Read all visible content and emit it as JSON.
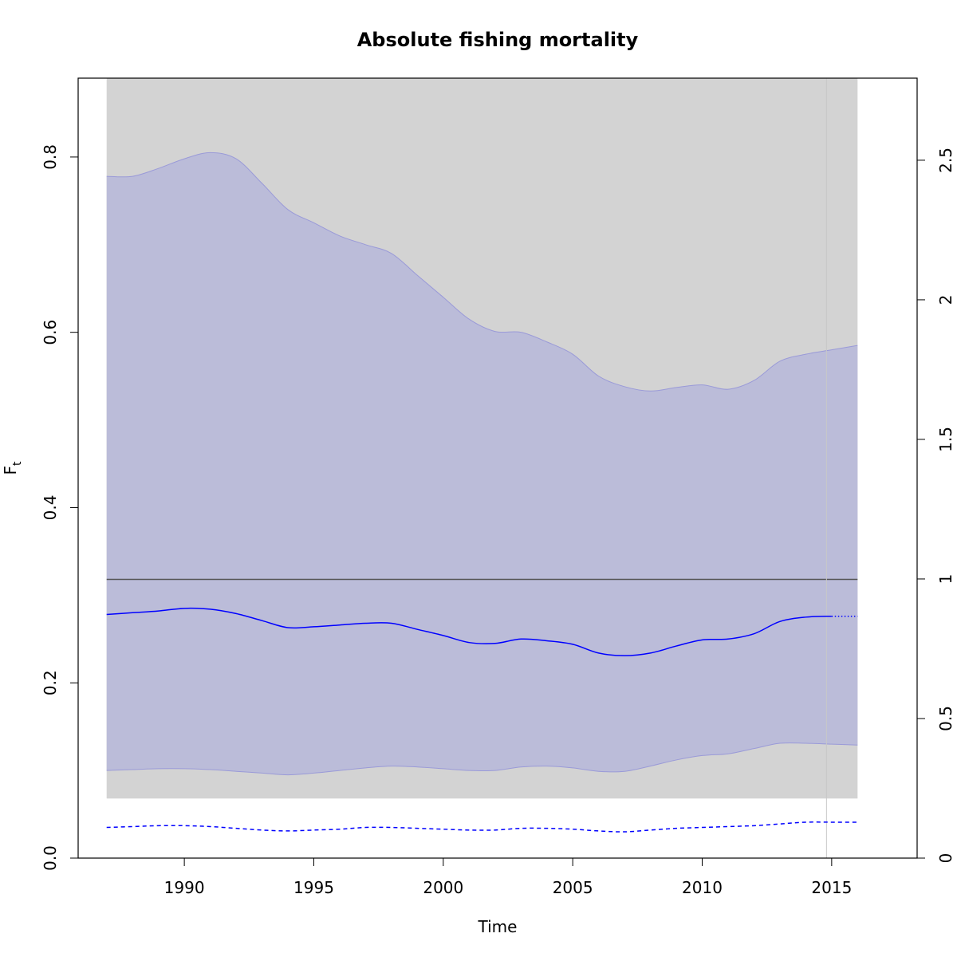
{
  "chart_data": {
    "type": "line",
    "title": "Absolute fishing mortality",
    "xlabel": "Time",
    "ylabel": "F",
    "ylabel_subscript": "t",
    "xlim": [
      1985.9,
      2018.3
    ],
    "ylim": [
      0,
      0.89
    ],
    "ylim_right": [
      0,
      2.794
    ],
    "x_ticks": [
      1990,
      1995,
      2000,
      2005,
      2010,
      2015
    ],
    "x_tick_labels": [
      "1990",
      "1995",
      "2000",
      "2005",
      "2010",
      "2015"
    ],
    "y_ticks": [
      0,
      0.2,
      0.4,
      0.6,
      0.8
    ],
    "y_tick_labels": [
      "0.0",
      "0.2",
      "0.4",
      "0.6",
      "0.8"
    ],
    "y_right_ticks": [
      0,
      0.5,
      1,
      1.5,
      2,
      2.5
    ],
    "y_right_tick_labels": [
      "0",
      "0.5",
      "1",
      "1.5",
      "2",
      "2.5"
    ],
    "grid": false,
    "background_band": {
      "x": [
        1987,
        2016
      ],
      "y": [
        0.068,
        0.89
      ],
      "color": "#d3d3d3"
    },
    "reference_hline": {
      "y": 0.318,
      "color": "#555555"
    },
    "reference_vline": {
      "x": 2014.8,
      "color": "#c8c8c8"
    },
    "ci_band": {
      "color": "#bbbcd9",
      "x": [
        1987,
        1988,
        1989,
        1990,
        1991,
        1992,
        1993,
        1994,
        1995,
        1996,
        1997,
        1998,
        1999,
        2000,
        2001,
        2002,
        2003,
        2004,
        2005,
        2006,
        2007,
        2008,
        2009,
        2010,
        2011,
        2012,
        2013,
        2014,
        2015,
        2016
      ],
      "upper": [
        0.778,
        0.778,
        0.787,
        0.798,
        0.805,
        0.798,
        0.77,
        0.74,
        0.725,
        0.71,
        0.7,
        0.69,
        0.665,
        0.64,
        0.615,
        0.601,
        0.6,
        0.589,
        0.575,
        0.55,
        0.538,
        0.533,
        0.537,
        0.54,
        0.535,
        0.545,
        0.567,
        0.575,
        0.58,
        0.585
      ],
      "lower": [
        0.1,
        0.101,
        0.102,
        0.102,
        0.101,
        0.099,
        0.097,
        0.095,
        0.097,
        0.1,
        0.103,
        0.105,
        0.104,
        0.102,
        0.1,
        0.1,
        0.104,
        0.105,
        0.103,
        0.099,
        0.099,
        0.105,
        0.112,
        0.117,
        0.119,
        0.125,
        0.131,
        0.131,
        0.13,
        0.129
      ]
    },
    "series": [
      {
        "style": "solid",
        "color": "#0000ff",
        "x": [
          1987,
          1988,
          1989,
          1990,
          1991,
          1992,
          1993,
          1994,
          1995,
          1996,
          1997,
          1998,
          1999,
          2000,
          2001,
          2002,
          2003,
          2004,
          2005,
          2006,
          2007,
          2008,
          2009,
          2010,
          2011,
          2012,
          2013,
          2014,
          2015
        ],
        "values": [
          0.278,
          0.28,
          0.282,
          0.285,
          0.284,
          0.279,
          0.271,
          0.263,
          0.264,
          0.266,
          0.268,
          0.268,
          0.261,
          0.254,
          0.246,
          0.245,
          0.25,
          0.248,
          0.244,
          0.234,
          0.231,
          0.234,
          0.242,
          0.249,
          0.25,
          0.256,
          0.27,
          0.275,
          0.276
        ]
      },
      {
        "style": "dotted",
        "color": "#0000ff",
        "x": [
          2015,
          2016
        ],
        "values": [
          0.276,
          0.276
        ]
      },
      {
        "style": "dashed",
        "color": "#0000ff",
        "x": [
          1987,
          1988,
          1989,
          1990,
          1991,
          1992,
          1993,
          1994,
          1995,
          1996,
          1997,
          1998,
          1999,
          2000,
          2001,
          2002,
          2003,
          2004,
          2005,
          2006,
          2007,
          2008,
          2009,
          2010,
          2011,
          2012,
          2013,
          2014,
          2015,
          2016
        ],
        "values": [
          0.035,
          0.036,
          0.037,
          0.037,
          0.036,
          0.034,
          0.032,
          0.031,
          0.032,
          0.033,
          0.035,
          0.035,
          0.034,
          0.033,
          0.032,
          0.032,
          0.034,
          0.034,
          0.033,
          0.031,
          0.03,
          0.032,
          0.034,
          0.035,
          0.036,
          0.037,
          0.039,
          0.041,
          0.041,
          0.041
        ]
      }
    ]
  }
}
